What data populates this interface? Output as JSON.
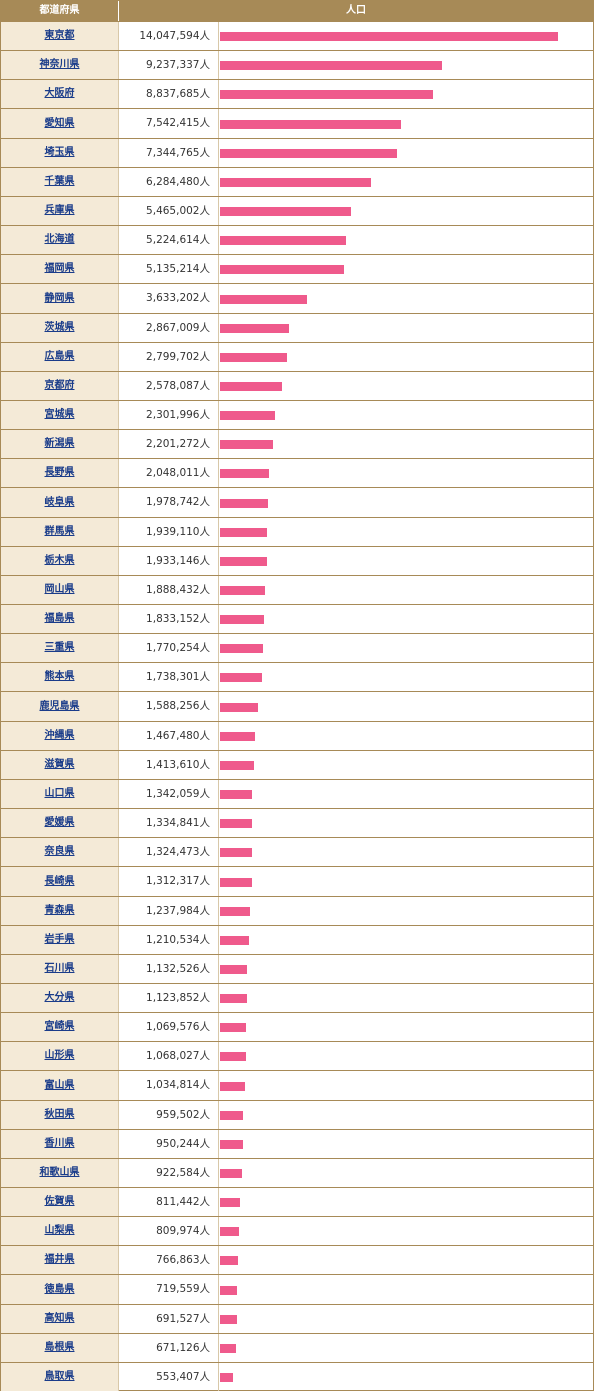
{
  "table": {
    "header_pref": "都道府県",
    "header_pop": "人口"
  },
  "colors": {
    "header_bg": "#a78a57",
    "pref_bg": "#f4ead7",
    "link": "#1a3c8a",
    "bar": "#ef5a8c"
  },
  "chart_data": {
    "type": "bar",
    "orientation": "horizontal",
    "unit": "人",
    "xlim": [
      0,
      14047594
    ],
    "categories": [
      "東京都",
      "神奈川県",
      "大阪府",
      "愛知県",
      "埼玉県",
      "千葉県",
      "兵庫県",
      "北海道",
      "福岡県",
      "静岡県",
      "茨城県",
      "広島県",
      "京都府",
      "宮城県",
      "新潟県",
      "長野県",
      "岐阜県",
      "群馬県",
      "栃木県",
      "岡山県",
      "福島県",
      "三重県",
      "熊本県",
      "鹿児島県",
      "沖縄県",
      "滋賀県",
      "山口県",
      "愛媛県",
      "奈良県",
      "長崎県",
      "青森県",
      "岩手県",
      "石川県",
      "大分県",
      "宮崎県",
      "山形県",
      "富山県",
      "秋田県",
      "香川県",
      "和歌山県",
      "佐賀県",
      "山梨県",
      "福井県",
      "徳島県",
      "高知県",
      "島根県",
      "鳥取県"
    ],
    "values": [
      14047594,
      9237337,
      8837685,
      7542415,
      7344765,
      6284480,
      5465002,
      5224614,
      5135214,
      3633202,
      2867009,
      2799702,
      2578087,
      2301996,
      2201272,
      2048011,
      1978742,
      1939110,
      1933146,
      1888432,
      1833152,
      1770254,
      1738301,
      1588256,
      1467480,
      1413610,
      1342059,
      1334841,
      1324473,
      1312317,
      1237984,
      1210534,
      1132526,
      1123852,
      1069576,
      1068027,
      1034814,
      959502,
      950244,
      922584,
      811442,
      809974,
      766863,
      719559,
      691527,
      671126,
      553407
    ],
    "value_labels": [
      "14,047,594人",
      "9,237,337人",
      "8,837,685人",
      "7,542,415人",
      "7,344,765人",
      "6,284,480人",
      "5,465,002人",
      "5,224,614人",
      "5,135,214人",
      "3,633,202人",
      "2,867,009人",
      "2,799,702人",
      "2,578,087人",
      "2,301,996人",
      "2,201,272人",
      "2,048,011人",
      "1,978,742人",
      "1,939,110人",
      "1,933,146人",
      "1,888,432人",
      "1,833,152人",
      "1,770,254人",
      "1,738,301人",
      "1,588,256人",
      "1,467,480人",
      "1,413,610人",
      "1,342,059人",
      "1,334,841人",
      "1,324,473人",
      "1,312,317人",
      "1,237,984人",
      "1,210,534人",
      "1,132,526人",
      "1,123,852人",
      "1,069,576人",
      "1,068,027人",
      "1,034,814人",
      "959,502人",
      "950,244人",
      "922,584人",
      "811,442人",
      "809,974人",
      "766,863人",
      "719,559人",
      "691,527人",
      "671,126人",
      "553,407人"
    ]
  }
}
